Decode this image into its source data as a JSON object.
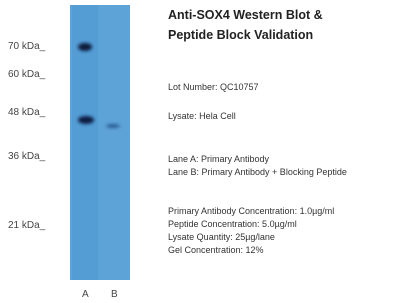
{
  "markers": [
    "70 kDa_",
    "60 kDa_",
    "48 kDa_",
    "36 kDa_",
    "21 kDa_"
  ],
  "lanes": [
    "A",
    "B"
  ],
  "title": [
    "Anti-SOX4 Western Blot &",
    "Peptide Block Validation"
  ],
  "lot": "Lot Number: QC10757",
  "lysate": "Lysate: Hela Cell",
  "lane_notes": [
    "Lane A: Primary Antibody",
    "Lane B: Primary Antibody + Blocking Peptide"
  ],
  "conditions": [
    "Primary Antibody Concentration: 1.0µg/ml",
    "Peptide Concentration: 5.0µg/ml",
    "Lysate Quantity: 25µg/lane",
    "Gel Concentration: 12%"
  ]
}
